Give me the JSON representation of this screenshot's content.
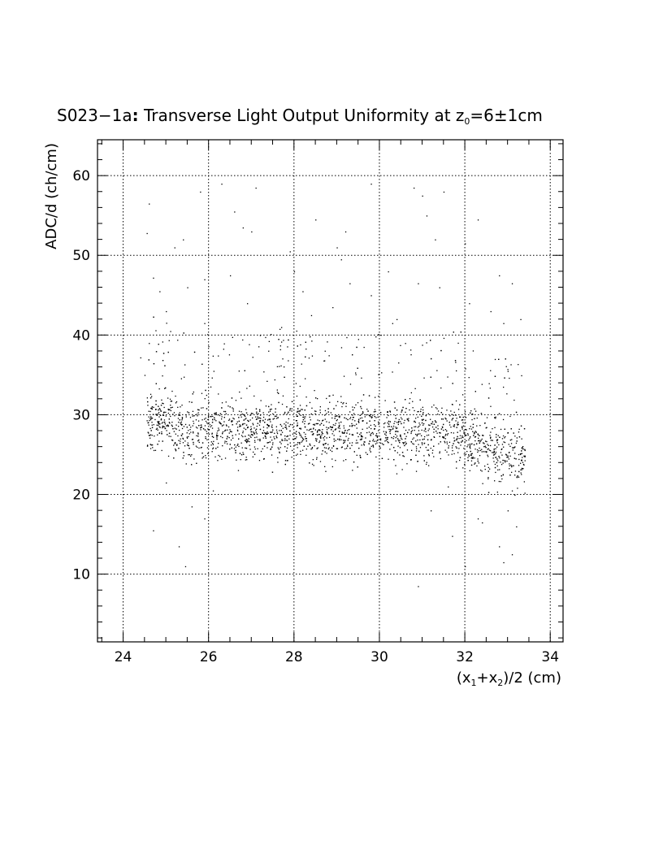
{
  "chart_data": {
    "type": "scatter",
    "title_main": "S023−1a",
    "title_colon": ":",
    "title_rest": " Transverse Light Output Uniformity at z",
    "title_sub": "0",
    "title_end": "=6±1cm",
    "title": "S023−1a: Transverse Light Output Uniformity at z0=6±1cm",
    "xlabel": "(x1+x2)/2 (cm)",
    "xlabel_parts": {
      "p1": "(x",
      "s1": "1",
      "p2": "+x",
      "s2": "2",
      "p3": ")/2 (cm)"
    },
    "ylabel": "ADC/d (ch/cm)",
    "xlim": [
      23.4,
      34.3
    ],
    "ylim": [
      1.5,
      64.5
    ],
    "x_ticks": [
      24,
      26,
      28,
      30,
      32,
      34
    ],
    "y_ticks": [
      10,
      20,
      30,
      40,
      50,
      60
    ],
    "x_tick_labels": [
      "24",
      "26",
      "28",
      "30",
      "32",
      "34"
    ],
    "y_tick_labels": [
      "10",
      "20",
      "30",
      "40",
      "50",
      "60"
    ],
    "grid": true,
    "grid_style": "dotted",
    "point_color": "#000000",
    "x_range_data": [
      24.3,
      33.4
    ],
    "band_center_y": 28,
    "band_y_range": [
      22,
      36
    ],
    "outlier_y_range": [
      8,
      59
    ],
    "points": [
      [
        24.55,
        52.8
      ],
      [
        24.6,
        56.5
      ],
      [
        24.7,
        47.2
      ],
      [
        24.85,
        45.5
      ],
      [
        25.0,
        43.0
      ],
      [
        25.1,
        40.5
      ],
      [
        25.2,
        51.0
      ],
      [
        25.4,
        52.0
      ],
      [
        25.5,
        46.0
      ],
      [
        25.8,
        58.0
      ],
      [
        25.9,
        47.0
      ],
      [
        25.9,
        41.5
      ],
      [
        26.3,
        59.0
      ],
      [
        26.5,
        47.5
      ],
      [
        26.6,
        55.5
      ],
      [
        26.8,
        53.5
      ],
      [
        26.9,
        44.0
      ],
      [
        27.0,
        53.0
      ],
      [
        27.1,
        58.5
      ],
      [
        27.2,
        40.0
      ],
      [
        27.7,
        41.0
      ],
      [
        27.9,
        50.5
      ],
      [
        28.0,
        48.0
      ],
      [
        28.2,
        45.5
      ],
      [
        28.4,
        42.5
      ],
      [
        28.5,
        54.5
      ],
      [
        28.9,
        43.5
      ],
      [
        29.0,
        51.0
      ],
      [
        29.1,
        49.5
      ],
      [
        29.2,
        53.0
      ],
      [
        29.3,
        46.5
      ],
      [
        29.5,
        39.5
      ],
      [
        29.8,
        59.0
      ],
      [
        29.8,
        45.0
      ],
      [
        30.2,
        48.0
      ],
      [
        30.3,
        41.5
      ],
      [
        30.4,
        42.0
      ],
      [
        30.6,
        39.0
      ],
      [
        30.8,
        58.5
      ],
      [
        30.9,
        46.5
      ],
      [
        31.0,
        57.5
      ],
      [
        31.1,
        55.0
      ],
      [
        31.3,
        52.0
      ],
      [
        31.4,
        46.0
      ],
      [
        31.5,
        58.0
      ],
      [
        32.0,
        51.5
      ],
      [
        32.1,
        44.0
      ],
      [
        32.3,
        54.5
      ],
      [
        32.6,
        43.0
      ],
      [
        32.8,
        47.5
      ],
      [
        32.9,
        41.5
      ],
      [
        33.1,
        46.5
      ],
      [
        33.3,
        42.0
      ],
      [
        25.0,
        21.5
      ],
      [
        25.3,
        13.5
      ],
      [
        25.45,
        11.0
      ],
      [
        25.6,
        18.5
      ],
      [
        25.9,
        17.0
      ],
      [
        24.7,
        15.5
      ],
      [
        26.1,
        20.5
      ],
      [
        30.9,
        8.5
      ],
      [
        31.2,
        18.0
      ],
      [
        31.6,
        21.0
      ],
      [
        31.7,
        14.8
      ],
      [
        32.0,
        11.0
      ],
      [
        32.3,
        17.0
      ],
      [
        32.4,
        16.5
      ],
      [
        32.8,
        13.5
      ],
      [
        32.9,
        11.5
      ],
      [
        33.0,
        18.0
      ],
      [
        33.1,
        12.5
      ],
      [
        33.2,
        16.0
      ],
      [
        33.1,
        20.5
      ],
      [
        24.4,
        37.2
      ],
      [
        24.5,
        35.0
      ],
      [
        24.6,
        39.0
      ],
      [
        32.7,
        37.0
      ],
      [
        33.0,
        35.5
      ]
    ]
  }
}
